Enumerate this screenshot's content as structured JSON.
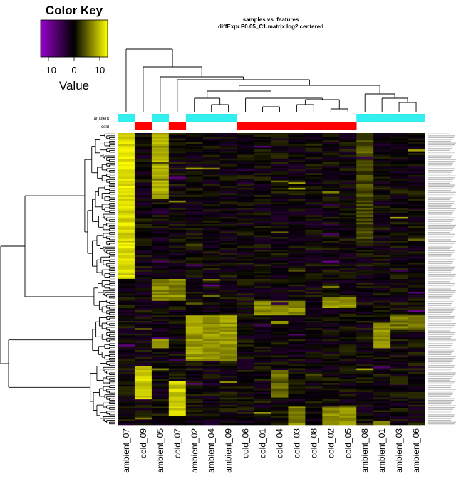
{
  "colors": {
    "low": "#9900cc",
    "mid": "#000000",
    "high": "#ffff00",
    "ambient": "#33eeee",
    "cold": "#ff0000",
    "dendrogram": "#000000"
  },
  "color_key": {
    "title": "Color Key",
    "xlabel": "Value",
    "ticks": [
      "−10",
      "0",
      "10"
    ]
  },
  "chart_data": {
    "type": "heatmap",
    "title": "samples vs. features",
    "subtitle": "diffExpr.P0.05_C1.matrix.log2.centered",
    "value_range": [
      -15,
      15
    ],
    "columns": [
      "ambient_07",
      "cold_09",
      "ambient_05",
      "cold_07",
      "ambient_02",
      "ambient_04",
      "ambient_09",
      "cold_06",
      "cold_01",
      "cold_04",
      "cold_03",
      "cold_08",
      "cold_02",
      "cold_05",
      "ambient_08",
      "ambient_01",
      "ambient_03",
      "ambient_06"
    ],
    "column_groups": [
      "ambient",
      "cold",
      "ambient",
      "cold",
      "ambient",
      "ambient",
      "ambient",
      "cold",
      "cold",
      "cold",
      "cold",
      "cold",
      "cold",
      "cold",
      "ambient",
      "ambient",
      "ambient",
      "ambient"
    ],
    "annotation_labels": [
      "ambient",
      "cold"
    ],
    "row_count": 160,
    "blocks": [
      {
        "rows": [
          0,
          80
        ],
        "cols": [
          0
        ],
        "value": 13
      },
      {
        "rows": [
          0,
          36
        ],
        "cols": [
          2
        ],
        "value": 10
      },
      {
        "rows": [
          0,
          60
        ],
        "cols": [
          14
        ],
        "value": 4
      },
      {
        "rows": [
          80,
          92
        ],
        "cols": [
          2,
          3
        ],
        "value": 8
      },
      {
        "rows": [
          92,
          100
        ],
        "cols": [
          8,
          9,
          10
        ],
        "value": 8
      },
      {
        "rows": [
          90,
          96
        ],
        "cols": [
          12,
          13
        ],
        "value": 9
      },
      {
        "rows": [
          100,
          125
        ],
        "cols": [
          4,
          5,
          6
        ],
        "value": 9
      },
      {
        "rows": [
          100,
          108
        ],
        "cols": [
          16,
          17
        ],
        "value": 7
      },
      {
        "rows": [
          104,
          118
        ],
        "cols": [
          15
        ],
        "value": 8
      },
      {
        "rows": [
          112,
          118
        ],
        "cols": [
          2
        ],
        "value": 9
      },
      {
        "rows": [
          128,
          146
        ],
        "cols": [
          1
        ],
        "value": 12
      },
      {
        "rows": [
          136,
          155
        ],
        "cols": [
          3
        ],
        "value": 12
      },
      {
        "rows": [
          150,
          160
        ],
        "cols": [
          10,
          12,
          13
        ],
        "value": 8
      },
      {
        "rows": [
          130,
          145
        ],
        "cols": [
          9
        ],
        "value": 6
      }
    ]
  }
}
